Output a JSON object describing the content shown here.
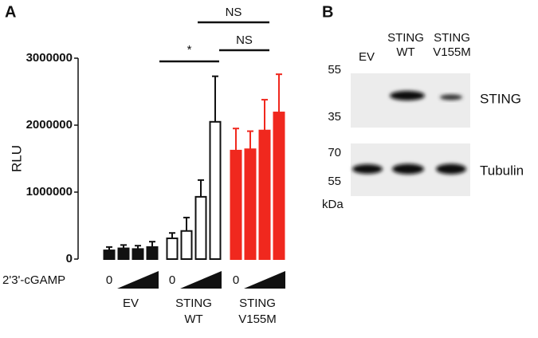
{
  "chart_data": {
    "type": "bar",
    "panel_label": "A",
    "ylabel": "RLU",
    "xlabel": "2'3'-cGAMP",
    "dose_zero": "0",
    "ylim": [
      0,
      3000000
    ],
    "yticks": [
      0,
      1000000,
      2000000,
      3000000
    ],
    "series": [
      {
        "name_lines": [
          "EV"
        ],
        "color": "#111111",
        "fill": "#111111",
        "values": [
          130000,
          160000,
          150000,
          180000
        ],
        "errors": [
          50000,
          50000,
          50000,
          80000
        ]
      },
      {
        "name_lines": [
          "STING",
          "WT"
        ],
        "color": "#111111",
        "fill": "#ffffff",
        "values": [
          310000,
          420000,
          930000,
          2050000
        ],
        "errors": [
          80000,
          200000,
          250000,
          680000
        ]
      },
      {
        "name_lines": [
          "STING",
          "V155M"
        ],
        "color": "#f0281e",
        "fill": "#f0281e",
        "values": [
          1620000,
          1640000,
          1920000,
          2190000
        ],
        "errors": [
          330000,
          270000,
          460000,
          570000
        ]
      }
    ],
    "annotations": [
      "*",
      "NS",
      "NS"
    ]
  },
  "blot": {
    "panel_label": "B",
    "lanes": [
      [
        "EV"
      ],
      [
        "STING",
        "WT"
      ],
      [
        "STING",
        "V155M"
      ]
    ],
    "markers": [
      "55",
      "35",
      "70",
      "55"
    ],
    "unit": "kDa",
    "bands": [
      "STING",
      "Tubulin"
    ]
  }
}
